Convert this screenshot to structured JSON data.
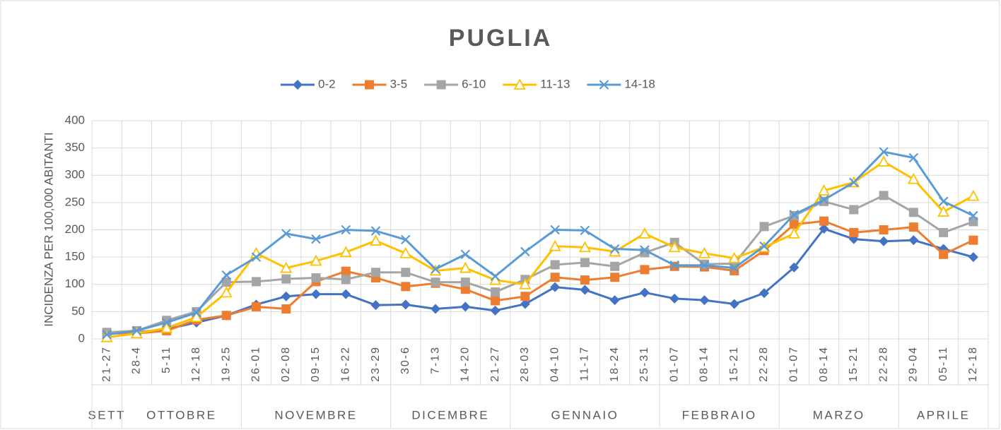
{
  "chart_data": {
    "type": "line",
    "title": "PUGLIA",
    "y_label": "INCIDENZA PER 100,000 ABITANTI",
    "categories": [
      "21-27",
      "28-4",
      "5-11",
      "12-18",
      "19-25",
      "26-01",
      "02-08",
      "09-15",
      "16-22",
      "23-29",
      "30-6",
      "7-13",
      "14-20",
      "21-27",
      "28-03",
      "04-10",
      "11-17",
      "18-24",
      "25-31",
      "01-07",
      "08-14",
      "15-21",
      "22-28",
      "01-07",
      "08-14",
      "15-21",
      "22-28",
      "29-04",
      "05-11",
      "12-18"
    ],
    "category_groups": [
      {
        "name": "SETT",
        "size": 1
      },
      {
        "name": "OTTOBRE",
        "size": 4
      },
      {
        "name": "NOVEMBRE",
        "size": 5
      },
      {
        "name": "DICEMBRE",
        "size": 4
      },
      {
        "name": "GENNAIO",
        "size": 5
      },
      {
        "name": "FEBBRAIO",
        "size": 4
      },
      {
        "name": "MARZO",
        "size": 4
      },
      {
        "name": "APRILE",
        "size": 3
      }
    ],
    "series": [
      {
        "name": "0-2",
        "color": "#4472c4",
        "marker": "diamond",
        "values": [
          10,
          12,
          18,
          30,
          43,
          63,
          78,
          82,
          82,
          62,
          63,
          55,
          59,
          52,
          64,
          95,
          90,
          71,
          85,
          74,
          71,
          64,
          84,
          131,
          202,
          183,
          179,
          181,
          165,
          150
        ]
      },
      {
        "name": "3-5",
        "color": "#ed7d31",
        "marker": "square",
        "values": [
          10,
          10,
          15,
          35,
          43,
          59,
          55,
          105,
          124,
          112,
          96,
          102,
          91,
          70,
          78,
          113,
          108,
          113,
          127,
          133,
          132,
          125,
          162,
          210,
          216,
          195,
          200,
          205,
          155,
          181
        ]
      },
      {
        "name": "6-10",
        "color": "#a5a5a5",
        "marker": "square",
        "values": [
          12,
          15,
          34,
          50,
          104,
          105,
          110,
          112,
          109,
          122,
          122,
          104,
          104,
          86,
          109,
          136,
          140,
          133,
          158,
          177,
          137,
          138,
          206,
          226,
          252,
          237,
          263,
          232,
          195,
          215
        ]
      },
      {
        "name": "11-13",
        "color": "#ffc000",
        "marker": "triangle",
        "values": [
          3,
          10,
          20,
          40,
          85,
          157,
          130,
          143,
          159,
          180,
          157,
          125,
          130,
          108,
          100,
          170,
          168,
          160,
          193,
          168,
          157,
          148,
          168,
          193,
          272,
          287,
          325,
          293,
          233,
          262
        ]
      },
      {
        "name": "14-18",
        "color": "#5b9bd5",
        "marker": "x",
        "values": [
          8,
          15,
          30,
          48,
          117,
          150,
          193,
          183,
          200,
          198,
          182,
          128,
          155,
          115,
          160,
          200,
          199,
          165,
          163,
          135,
          135,
          130,
          170,
          228,
          255,
          287,
          343,
          332,
          252,
          226
        ]
      }
    ],
    "ylim": [
      0,
      400
    ],
    "yticks": [
      0,
      50,
      100,
      150,
      200,
      250,
      300,
      350,
      400
    ],
    "grid": true,
    "legend": "top"
  }
}
